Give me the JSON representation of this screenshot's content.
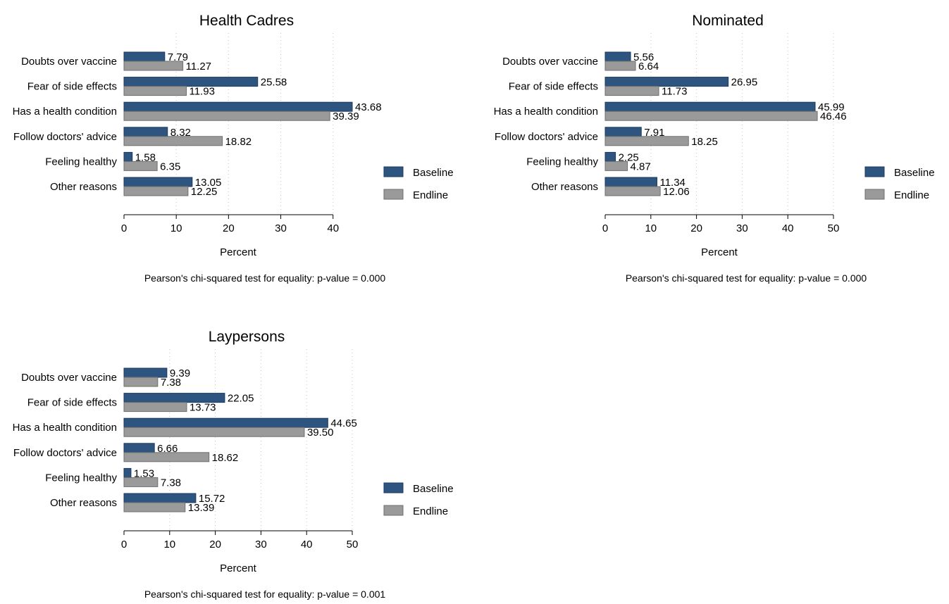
{
  "colors": {
    "baseline": "#2d5580",
    "endline": "#9a9a9a"
  },
  "chart_data": [
    {
      "type": "bar",
      "orientation": "horizontal",
      "title": "Health Cadres",
      "categories": [
        "Doubts over vaccine",
        "Fear of side effects",
        "Has a health condition",
        "Follow doctors' advice",
        "Feeling healthy",
        "Other reasons"
      ],
      "series": [
        {
          "name": "Baseline",
          "values": [
            7.79,
            25.58,
            43.68,
            8.32,
            1.58,
            13.05
          ],
          "labels": [
            "7.79",
            "25.58",
            "43.68",
            "8.32",
            "1.58",
            "13.05"
          ]
        },
        {
          "name": "Endline",
          "values": [
            11.27,
            11.93,
            39.39,
            18.82,
            6.35,
            12.25
          ],
          "labels": [
            "11.27",
            "11.93",
            "39.39",
            "18.82",
            "6.35",
            "12.25"
          ]
        }
      ],
      "xlabel": "Percent",
      "xlim": [
        0,
        43.68
      ],
      "xticks": [
        0,
        10,
        20,
        30,
        40
      ],
      "tick_labels": [
        "0",
        "10",
        "20",
        "30",
        "40"
      ],
      "grid": true,
      "legend_position": "right",
      "note": "Pearson's chi-squared test for equality: p-value = 0.000"
    },
    {
      "type": "bar",
      "orientation": "horizontal",
      "title": "Nominated",
      "categories": [
        "Doubts over vaccine",
        "Fear of side effects",
        "Has a health condition",
        "Follow doctors' advice",
        "Feeling healthy",
        "Other reasons"
      ],
      "series": [
        {
          "name": "Baseline",
          "values": [
            5.56,
            26.95,
            45.99,
            7.91,
            2.25,
            11.34
          ],
          "labels": [
            "5.56",
            "26.95",
            "45.99",
            "7.91",
            "2.25",
            "11.34"
          ]
        },
        {
          "name": "Endline",
          "values": [
            6.64,
            11.73,
            46.46,
            18.25,
            4.87,
            12.06
          ],
          "labels": [
            "6.64",
            "11.73",
            "46.46",
            "18.25",
            "4.87",
            "12.06"
          ]
        }
      ],
      "xlabel": "Percent",
      "xlim": [
        0,
        50
      ],
      "xticks": [
        0,
        10,
        20,
        30,
        40,
        50
      ],
      "tick_labels": [
        "0",
        "10",
        "20",
        "30",
        "40",
        "50"
      ],
      "grid": true,
      "legend_position": "right",
      "note": "Pearson's chi-squared test for equality: p-value = 0.000"
    },
    {
      "type": "bar",
      "orientation": "horizontal",
      "title": "Laypersons",
      "categories": [
        "Doubts over vaccine",
        "Fear of side effects",
        "Has a health condition",
        "Follow doctors' advice",
        "Feeling healthy",
        "Other reasons"
      ],
      "series": [
        {
          "name": "Baseline",
          "values": [
            9.39,
            22.05,
            44.65,
            6.66,
            1.53,
            15.72
          ],
          "labels": [
            "9.39",
            "22.05",
            "44.65",
            "6.66",
            "1.53",
            "15.72"
          ]
        },
        {
          "name": "Endline",
          "values": [
            7.38,
            13.73,
            39.5,
            18.62,
            7.38,
            13.39
          ],
          "labels": [
            "7.38",
            "13.73",
            "39.50",
            "18.62",
            "7.38",
            "13.39"
          ]
        }
      ],
      "xlabel": "Percent",
      "xlim": [
        0,
        50
      ],
      "xticks": [
        0,
        10,
        20,
        30,
        40,
        50
      ],
      "tick_labels": [
        "0",
        "10",
        "20",
        "30",
        "40",
        "50"
      ],
      "grid": true,
      "legend_position": "right",
      "note": "Pearson's chi-squared test for equality: p-value = 0.001"
    }
  ]
}
